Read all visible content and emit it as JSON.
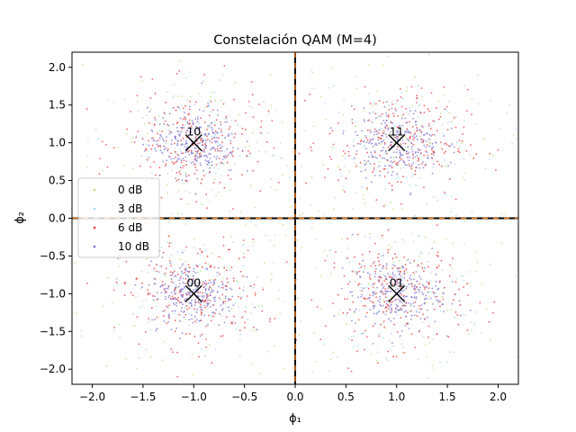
{
  "chart_data": {
    "type": "scatter",
    "title": "Constelación QAM (M=4)",
    "xlabel": "ϕ₁",
    "ylabel": "ϕ₂",
    "xlim": [
      -2.2,
      2.2
    ],
    "ylim": [
      -2.2,
      2.2
    ],
    "xticks": [
      -2.0,
      -1.5,
      -1.0,
      -0.5,
      0.0,
      0.5,
      1.0,
      1.5,
      2.0
    ],
    "yticks": [
      -2.0,
      -1.5,
      -1.0,
      -0.5,
      0.0,
      0.5,
      1.0,
      1.5,
      2.0
    ],
    "xtick_labels": [
      "−2.0",
      "−1.5",
      "−1.0",
      "−0.5",
      "0.0",
      "0.5",
      "1.0",
      "1.5",
      "2.0"
    ],
    "ytick_labels": [
      "−2.0",
      "−1.5",
      "−1.0",
      "−0.5",
      "0.0",
      "0.5",
      "1.0",
      "1.5",
      "2.0"
    ],
    "grid": false,
    "legend_position": "center-left",
    "symbols": [
      {
        "label": "00",
        "x": -1.0,
        "y": -1.0
      },
      {
        "label": "01",
        "x": 1.0,
        "y": -1.0
      },
      {
        "label": "10",
        "x": -1.0,
        "y": 1.0
      },
      {
        "label": "11",
        "x": 1.0,
        "y": 1.0
      }
    ],
    "series": [
      {
        "name": "0 dB",
        "color": "#b5e07f",
        "spread": 0.71,
        "points_per_symbol": 90
      },
      {
        "name": "3 dB",
        "color": "#a6d8ee",
        "spread": 0.5,
        "points_per_symbol": 110
      },
      {
        "name": "6 dB",
        "color": "#ee3333",
        "spread": 0.35,
        "points_per_symbol": 220
      },
      {
        "name": "10 dB",
        "color": "#7b6fd0",
        "spread": 0.22,
        "points_per_symbol": 260
      }
    ],
    "reference_lines": [
      {
        "axis": "x",
        "value": 0.0,
        "colors": [
          "#000000",
          "#ff7f0e"
        ]
      },
      {
        "axis": "y",
        "value": 0.0,
        "colors": [
          "#000000",
          "#ff7f0e"
        ]
      }
    ]
  }
}
